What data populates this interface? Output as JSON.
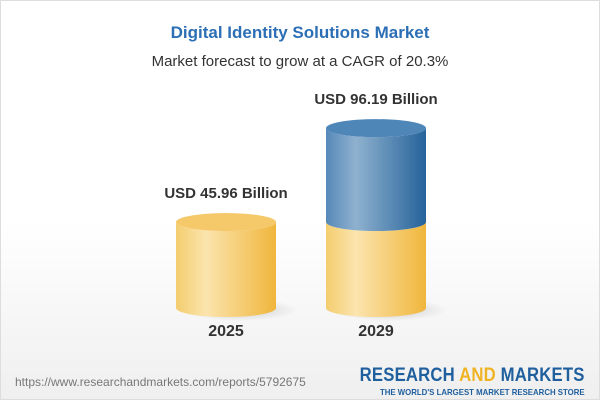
{
  "chart_data": {
    "type": "bar",
    "style": "3d-cylinder",
    "title": "Digital Identity Solutions Market",
    "subtitle": "Market forecast to grow at a CAGR of 20.3%",
    "categories": [
      "2025",
      "2029"
    ],
    "values": [
      45.96,
      96.19
    ],
    "data_labels": [
      "USD 45.96 Billion",
      "USD 96.19 Billion"
    ],
    "unit": "USD Billion",
    "colors": {
      "base": "#f2c14e",
      "growth": "#3f7cb0",
      "title": "#2c6fb5"
    },
    "grid": false
  },
  "footer": {
    "url": "https://www.researchandmarkets.com/reports/5792675",
    "logo": {
      "word1": "RESEARCH ",
      "word2": "AND",
      "word3": " MARKETS",
      "tagline": "THE WORLD'S LARGEST MARKET RESEARCH STORE"
    }
  }
}
